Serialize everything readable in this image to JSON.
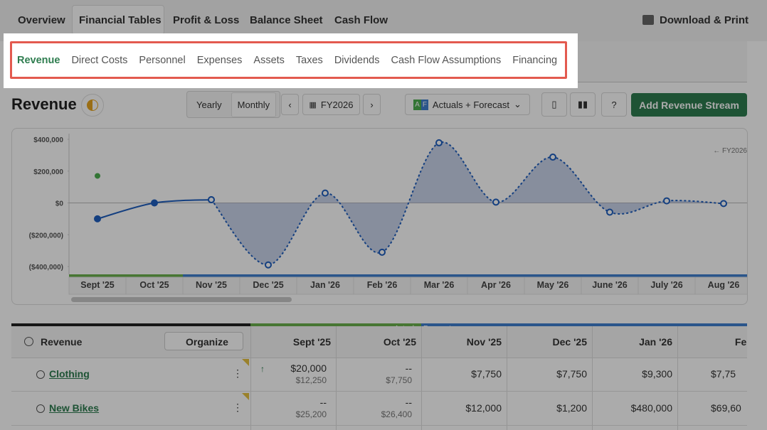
{
  "nav": {
    "tabs": [
      "Overview",
      "Financial Tables",
      "Profit & Loss",
      "Balance Sheet",
      "Cash Flow"
    ],
    "download": "Download & Print"
  },
  "subtabs": [
    "Revenue",
    "Direct Costs",
    "Personnel",
    "Expenses",
    "Assets",
    "Taxes",
    "Dividends",
    "Cash Flow Assumptions",
    "Financing"
  ],
  "toolbar": {
    "title": "Revenue",
    "period": [
      "Yearly",
      "Monthly"
    ],
    "year": "FY2026",
    "badge": [
      "A",
      "F"
    ],
    "view": "Actuals + Forecast",
    "action": "Add Revenue Stream"
  },
  "chart": {
    "type": "line",
    "categories": [
      "Sept '25",
      "Oct '25",
      "Nov '25",
      "Dec '25",
      "Jan '26",
      "Feb '26",
      "Mar '26",
      "Apr '26",
      "May '26",
      "June '26",
      "July '26",
      "Aug '26"
    ],
    "ylim": [
      -400000,
      400000
    ],
    "yticks": [
      {
        "value": 400000,
        "label": "$400,000"
      },
      {
        "value": 200000,
        "label": "$200,000"
      },
      {
        "value": 0,
        "label": "$0"
      },
      {
        "value": -200000,
        "label": "($200,000)"
      },
      {
        "value": -400000,
        "label": "($400,000)"
      }
    ],
    "fiscal_label": "← FY2026",
    "series": [
      {
        "color": "#1f5fbf",
        "dashed": false,
        "hollow": false,
        "values": [
          -100000,
          0,
          20000,
          null,
          null,
          null,
          null,
          null,
          null,
          null,
          null,
          null
        ]
      },
      {
        "color": "#1f5fbf",
        "dashed": true,
        "hollow": true,
        "fill": "#8aa0d0",
        "values": [
          null,
          null,
          20000,
          -390000,
          62000,
          -310000,
          378000,
          5000,
          288000,
          -58000,
          13000,
          -4000
        ]
      },
      {
        "color": "#4caf50",
        "line": false,
        "values": [
          170000,
          null,
          null,
          null,
          null,
          null,
          null,
          null,
          null,
          null,
          null,
          null
        ]
      }
    ]
  },
  "table": {
    "title": "Revenue",
    "organize": "Organize",
    "actuals_label": "← Actuals",
    "forecast_label": "Forecast →",
    "columns": [
      "Sept '25",
      "Oct '25",
      "Nov '25",
      "Dec '25",
      "Jan '26",
      "Feb '"
    ],
    "rows": [
      {
        "name": "Clothing",
        "cells": [
          {
            "value": "$20,000",
            "sub": "$12,250"
          },
          {
            "value": "--",
            "sub": "$7,750"
          },
          {
            "value": "$7,750"
          },
          {
            "value": "$7,750"
          },
          {
            "value": "$9,300"
          },
          {
            "value": "$7,75"
          }
        ]
      },
      {
        "name": "New Bikes",
        "cells": [
          {
            "value": "--",
            "sub": "$25,200"
          },
          {
            "value": "--",
            "sub": "$26,400"
          },
          {
            "value": "$12,000"
          },
          {
            "value": "$1,200"
          },
          {
            "value": "$480,000"
          },
          {
            "value": "$69,60"
          }
        ]
      }
    ]
  }
}
